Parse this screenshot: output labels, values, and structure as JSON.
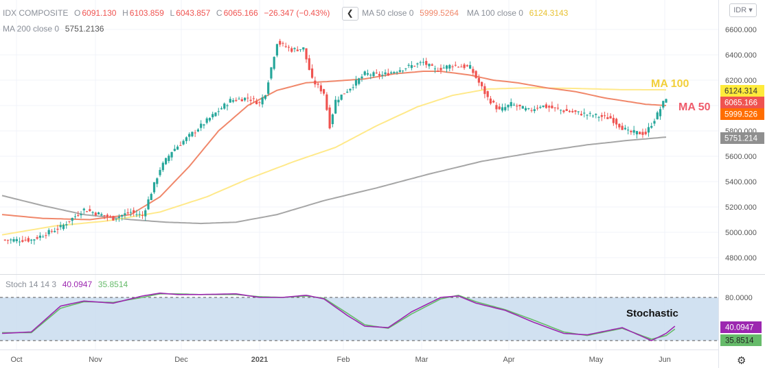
{
  "header": {
    "symbol": "IDX COMPOSITE",
    "open_label": "O",
    "open": "6091.130",
    "high_label": "H",
    "high": "6103.859",
    "low_label": "L",
    "low": "6043.857",
    "close_label": "C",
    "close": "6065.166",
    "change": "−26.347 (−0.43%)",
    "collapse_icon": "chevron-left-icon",
    "ma50_label": "MA 50 close 0",
    "ma50_value": "5999.5264",
    "ma100_label": "MA 100 close 0",
    "ma100_value": "6124.3143",
    "ma200_label": "MA 200 close 0",
    "ma200_value": "5751.2136",
    "currency": "IDR",
    "stoch_label": "Stoch 14 14 3",
    "stoch_k": "40.0947",
    "stoch_d": "35.8514",
    "settings_icon": "gear-icon"
  },
  "chart_data": {
    "type": "candlestick",
    "price_axis": {
      "ticks": [
        "6600.000",
        "6400.000",
        "6200.000",
        "6000.000",
        "5800.000",
        "5600.000",
        "5400.000",
        "5200.000",
        "5000.000",
        "4800.000"
      ],
      "range": [
        4700,
        6720
      ]
    },
    "stoch_axis": {
      "ticks": [
        "80.0000"
      ],
      "upper_band": 80,
      "lower_band": 20
    },
    "time_axis": [
      "Oct",
      "Nov",
      "Dec",
      "2021",
      "Feb",
      "Mar",
      "Apr",
      "May",
      "Jun"
    ],
    "annotations": [
      "MA 100",
      "MA 50",
      "Stochastic"
    ],
    "price_badges": [
      "6124.314",
      "6065.166",
      "5999.526",
      "5751.214"
    ],
    "stoch_badges": [
      "40.0947",
      "35.8514"
    ],
    "colors": {
      "up": "#26a69a",
      "down": "#ef5350",
      "ma50": "#f0876a",
      "ma100": "#ffe98a",
      "ma200": "#a6a6a6",
      "stoch_k": "#9c27b0",
      "stoch_d": "#66bb6a",
      "stoch_band": "#c9dcee",
      "close_badge": "#ef5350",
      "ma50_badge": "#ff6d00",
      "ma100_badge": "#ffeb3b",
      "ma200_badge": "#8f8f8f",
      "k_badge": "#9c27b0",
      "d_badge": "#66bb6a"
    },
    "closes_anchors": [
      [
        0,
        4940
      ],
      [
        10,
        4940
      ],
      [
        20,
        5040
      ],
      [
        28,
        5180
      ],
      [
        38,
        5110
      ],
      [
        44,
        5160
      ],
      [
        48,
        5130
      ],
      [
        54,
        5500
      ],
      [
        58,
        5640
      ],
      [
        64,
        5760
      ],
      [
        70,
        5880
      ],
      [
        78,
        6040
      ],
      [
        84,
        6060
      ],
      [
        88,
        6020
      ],
      [
        90,
        6100
      ],
      [
        94,
        6500
      ],
      [
        99,
        6440
      ],
      [
        103,
        6450
      ],
      [
        106,
        6200
      ],
      [
        110,
        6100
      ],
      [
        112,
        5840
      ],
      [
        114,
        6040
      ],
      [
        118,
        6120
      ],
      [
        124,
        6250
      ],
      [
        130,
        6240
      ],
      [
        138,
        6300
      ],
      [
        144,
        6340
      ],
      [
        148,
        6280
      ],
      [
        154,
        6320
      ],
      [
        160,
        6300
      ],
      [
        166,
        6060
      ],
      [
        170,
        5960
      ],
      [
        174,
        6010
      ],
      [
        180,
        5960
      ],
      [
        184,
        6000
      ],
      [
        192,
        5960
      ],
      [
        200,
        5930
      ],
      [
        208,
        5900
      ],
      [
        214,
        5790
      ],
      [
        220,
        5780
      ],
      [
        224,
        5930
      ],
      [
        227,
        6065
      ]
    ],
    "ma50_anchors": [
      [
        0,
        5140
      ],
      [
        14,
        5110
      ],
      [
        30,
        5100
      ],
      [
        44,
        5140
      ],
      [
        54,
        5280
      ],
      [
        64,
        5520
      ],
      [
        74,
        5800
      ],
      [
        84,
        6000
      ],
      [
        94,
        6120
      ],
      [
        104,
        6180
      ],
      [
        112,
        6190
      ],
      [
        124,
        6210
      ],
      [
        134,
        6250
      ],
      [
        144,
        6270
      ],
      [
        150,
        6270
      ],
      [
        160,
        6240
      ],
      [
        168,
        6200
      ],
      [
        176,
        6180
      ],
      [
        186,
        6140
      ],
      [
        196,
        6110
      ],
      [
        206,
        6060
      ],
      [
        220,
        6010
      ],
      [
        227,
        6000
      ]
    ],
    "ma100_anchors": [
      [
        0,
        4980
      ],
      [
        18,
        5050
      ],
      [
        36,
        5090
      ],
      [
        54,
        5160
      ],
      [
        70,
        5280
      ],
      [
        84,
        5420
      ],
      [
        100,
        5560
      ],
      [
        114,
        5670
      ],
      [
        128,
        5840
      ],
      [
        142,
        5990
      ],
      [
        154,
        6080
      ],
      [
        166,
        6130
      ],
      [
        180,
        6140
      ],
      [
        196,
        6135
      ],
      [
        212,
        6125
      ],
      [
        227,
        6124
      ]
    ],
    "ma200_anchors": [
      [
        0,
        5290
      ],
      [
        14,
        5210
      ],
      [
        28,
        5140
      ],
      [
        44,
        5100
      ],
      [
        56,
        5080
      ],
      [
        68,
        5070
      ],
      [
        80,
        5080
      ],
      [
        94,
        5140
      ],
      [
        110,
        5250
      ],
      [
        128,
        5350
      ],
      [
        146,
        5460
      ],
      [
        164,
        5560
      ],
      [
        182,
        5630
      ],
      [
        200,
        5690
      ],
      [
        214,
        5725
      ],
      [
        227,
        5751
      ]
    ],
    "stoch_k_anchors": [
      [
        0,
        30
      ],
      [
        10,
        32
      ],
      [
        20,
        68
      ],
      [
        28,
        75
      ],
      [
        38,
        72
      ],
      [
        48,
        82
      ],
      [
        54,
        86
      ],
      [
        60,
        84
      ],
      [
        68,
        84
      ],
      [
        80,
        85
      ],
      [
        88,
        80
      ],
      [
        96,
        80
      ],
      [
        104,
        83
      ],
      [
        110,
        78
      ],
      [
        118,
        55
      ],
      [
        124,
        40
      ],
      [
        132,
        38
      ],
      [
        140,
        60
      ],
      [
        150,
        80
      ],
      [
        156,
        82
      ],
      [
        162,
        72
      ],
      [
        172,
        62
      ],
      [
        182,
        45
      ],
      [
        192,
        30
      ],
      [
        200,
        28
      ],
      [
        212,
        38
      ],
      [
        222,
        20
      ],
      [
        227,
        30
      ],
      [
        230,
        40
      ]
    ],
    "stoch_d_anchors": [
      [
        0,
        31
      ],
      [
        10,
        31
      ],
      [
        20,
        65
      ],
      [
        28,
        74
      ],
      [
        38,
        73
      ],
      [
        48,
        80
      ],
      [
        54,
        85
      ],
      [
        60,
        85
      ],
      [
        68,
        84
      ],
      [
        80,
        84
      ],
      [
        88,
        81
      ],
      [
        96,
        80
      ],
      [
        104,
        82
      ],
      [
        110,
        79
      ],
      [
        118,
        58
      ],
      [
        124,
        42
      ],
      [
        132,
        37
      ],
      [
        140,
        57
      ],
      [
        150,
        78
      ],
      [
        156,
        83
      ],
      [
        162,
        74
      ],
      [
        172,
        63
      ],
      [
        182,
        48
      ],
      [
        192,
        32
      ],
      [
        200,
        27
      ],
      [
        212,
        37
      ],
      [
        222,
        22
      ],
      [
        227,
        27
      ],
      [
        230,
        36
      ]
    ]
  }
}
